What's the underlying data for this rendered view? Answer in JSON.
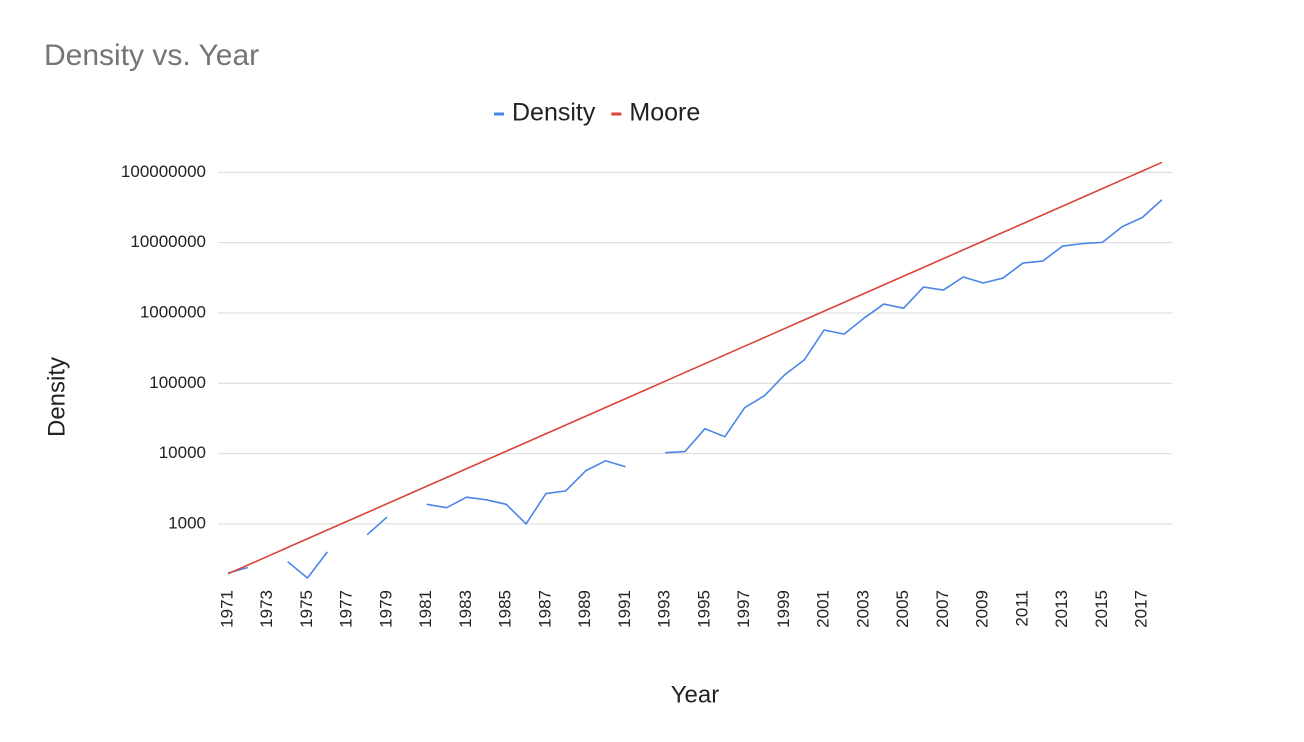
{
  "chart_data": {
    "type": "line",
    "title": "Density vs. Year",
    "x_label": "Year",
    "y_label": "Density",
    "categories": [
      "1971",
      null,
      "1973",
      null,
      "1975",
      null,
      "1977",
      null,
      "1979",
      null,
      "1981",
      null,
      "1983",
      null,
      "1985",
      null,
      "1987",
      null,
      "1989",
      null,
      "1991",
      null,
      "1993",
      null,
      "1995",
      null,
      "1997",
      null,
      "1999",
      null,
      "2001",
      null,
      "2003",
      null,
      "2005",
      null,
      "2007",
      null,
      "2009",
      null,
      "2011",
      null,
      "2013",
      null,
      "2015",
      null,
      "2017",
      null
    ],
    "series": [
      {
        "name": "Density",
        "color": "#4a86e8",
        "values": [
          200,
          240,
          null,
          290,
          170,
          400,
          null,
          700,
          1250,
          null,
          1900,
          1700,
          2400,
          2200,
          1900,
          1000,
          2700,
          2950,
          5700,
          7900,
          6500,
          null,
          10300,
          10700,
          22600,
          17400,
          45000,
          66700,
          131000,
          215000,
          573000,
          500000,
          843000,
          1340000,
          1170000,
          2340000,
          2120000,
          3250000,
          2670000,
          3140000,
          5130000,
          5480000,
          8950000,
          9700000,
          10100000,
          16900000,
          22700000,
          40800000
        ]
      },
      {
        "name": "Moore",
        "color": "#db4437",
        "values": [
          195,
          260,
          346,
          461,
          614,
          818,
          1090,
          1451,
          1933,
          2575,
          3430,
          4568,
          6086,
          8107,
          10800,
          14390,
          19160,
          25530,
          34010,
          45300,
          60350,
          80390,
          107100,
          142700,
          190000,
          253200,
          337300,
          449200,
          598400,
          797100,
          1062000,
          1414000,
          1884000,
          2509000,
          3342000,
          4453000,
          5932000,
          7902000,
          10520000,
          14020000,
          18670000,
          24880000,
          33140000,
          44150000,
          58810000,
          78340000,
          104300000,
          139000000
        ]
      }
    ],
    "log_y": true,
    "ylim": [
      170,
      150000000
    ],
    "yticks": [
      1000,
      10000,
      100000,
      1000000,
      10000000,
      100000000
    ],
    "grid": true,
    "legend": "top"
  }
}
